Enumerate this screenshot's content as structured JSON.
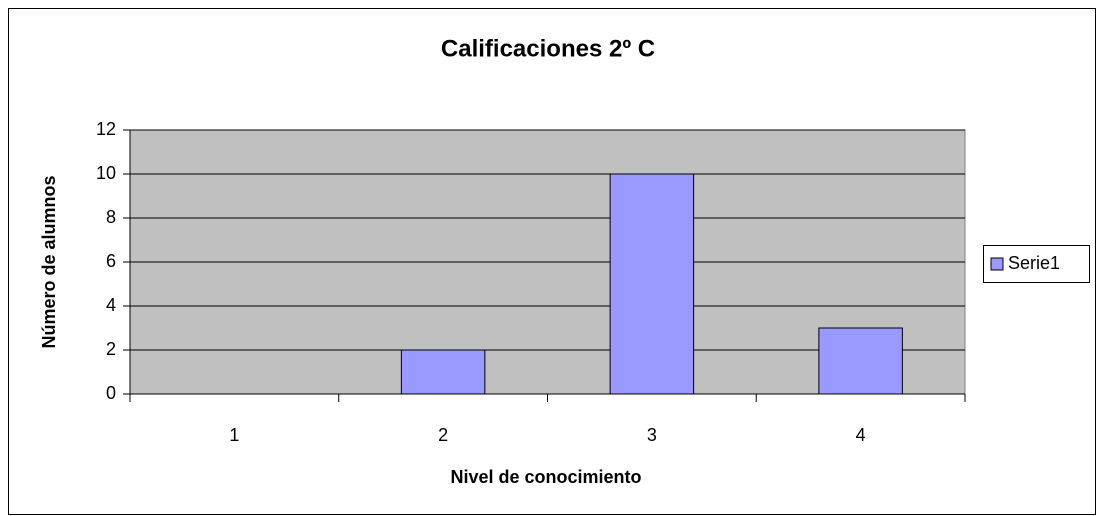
{
  "chart_data": {
    "type": "bar",
    "title": "Calificaciones 2º C",
    "x_label": "Nivel de conocimiento",
    "y_label": "Número de alumnos",
    "categories": [
      "1",
      "2",
      "3",
      "4"
    ],
    "series": [
      {
        "name": "Serie1",
        "color": "#9999ff",
        "values": [
          0,
          2,
          10,
          3
        ]
      }
    ],
    "ylim": [
      0,
      12
    ],
    "yticks": [
      0,
      2,
      4,
      6,
      8,
      10,
      12
    ],
    "grid": true,
    "legend": "right"
  }
}
